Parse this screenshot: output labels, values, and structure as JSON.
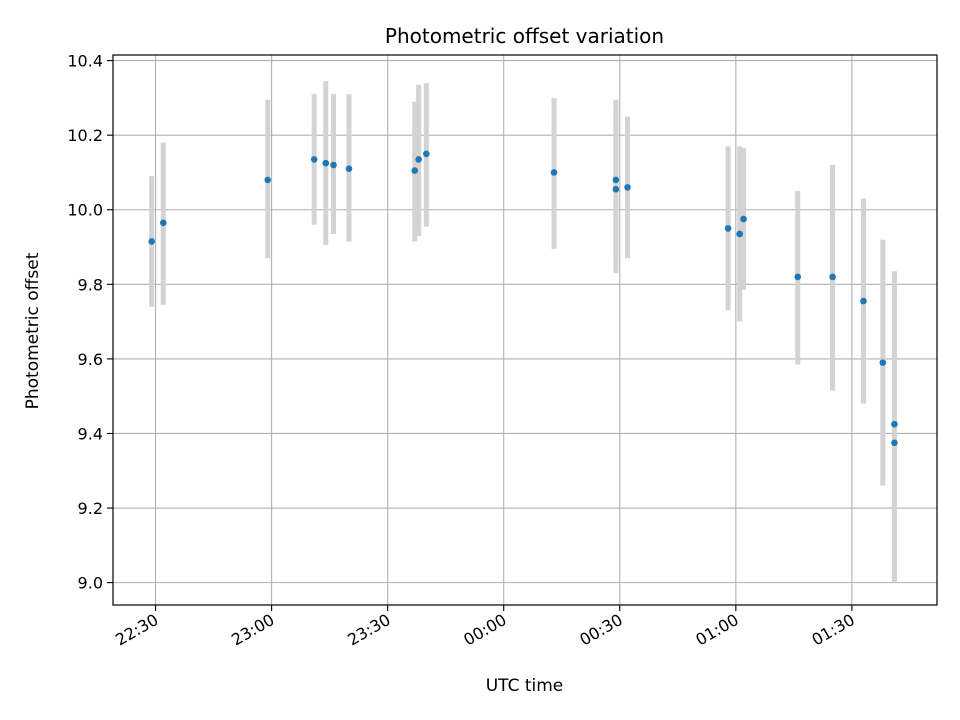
{
  "chart_data": {
    "type": "scatter",
    "title": "Photometric offset variation",
    "xlabel": "UTC time",
    "ylabel": "Photometric offset",
    "x_axis_kind": "time",
    "x_ticks": [
      "22:30",
      "23:00",
      "23:30",
      "00:00",
      "00:30",
      "01:00",
      "01:30"
    ],
    "y_ticks": [
      "9.0",
      "9.2",
      "9.4",
      "9.6",
      "9.8",
      "10.0",
      "10.2",
      "10.4"
    ],
    "xlim": [
      "22:19",
      "01:52"
    ],
    "ylim": [
      8.94,
      10.415
    ],
    "grid": true,
    "point_color": "#1f77b4",
    "errorbar_color": "#d3d3d3",
    "points": [
      {
        "t": "22:29",
        "y": 9.915,
        "ylo": 9.74,
        "yhi": 10.09
      },
      {
        "t": "22:32",
        "y": 9.965,
        "ylo": 9.745,
        "yhi": 10.18
      },
      {
        "t": "22:59",
        "y": 10.08,
        "ylo": 9.87,
        "yhi": 10.295
      },
      {
        "t": "23:11",
        "y": 10.135,
        "ylo": 9.96,
        "yhi": 10.31
      },
      {
        "t": "23:14",
        "y": 10.125,
        "ylo": 9.905,
        "yhi": 10.345
      },
      {
        "t": "23:16",
        "y": 10.12,
        "ylo": 9.935,
        "yhi": 10.31
      },
      {
        "t": "23:20",
        "y": 10.11,
        "ylo": 9.915,
        "yhi": 10.31
      },
      {
        "t": "23:37",
        "y": 10.105,
        "ylo": 9.915,
        "yhi": 10.29
      },
      {
        "t": "23:38",
        "y": 10.135,
        "ylo": 9.93,
        "yhi": 10.335
      },
      {
        "t": "23:40",
        "y": 10.15,
        "ylo": 9.955,
        "yhi": 10.34
      },
      {
        "t": "00:13",
        "y": 10.1,
        "ylo": 9.895,
        "yhi": 10.3
      },
      {
        "t": "00:29",
        "y": 10.08,
        "ylo": 9.86,
        "yhi": 10.295
      },
      {
        "t": "00:29",
        "y": 10.055,
        "ylo": 9.83,
        "yhi": 10.275
      },
      {
        "t": "00:32",
        "y": 10.06,
        "ylo": 9.87,
        "yhi": 10.25
      },
      {
        "t": "00:58",
        "y": 9.95,
        "ylo": 9.73,
        "yhi": 10.17
      },
      {
        "t": "01:01",
        "y": 9.935,
        "ylo": 9.7,
        "yhi": 10.17
      },
      {
        "t": "01:02",
        "y": 9.975,
        "ylo": 9.785,
        "yhi": 10.165
      },
      {
        "t": "01:16",
        "y": 9.82,
        "ylo": 9.585,
        "yhi": 10.05
      },
      {
        "t": "01:25",
        "y": 9.82,
        "ylo": 9.515,
        "yhi": 10.12
      },
      {
        "t": "01:33",
        "y": 9.755,
        "ylo": 9.48,
        "yhi": 10.03
      },
      {
        "t": "01:38",
        "y": 9.59,
        "ylo": 9.26,
        "yhi": 9.92
      },
      {
        "t": "01:41",
        "y": 9.375,
        "ylo": 9.0,
        "yhi": 9.75
      },
      {
        "t": "01:41",
        "y": 9.425,
        "ylo": 9.01,
        "yhi": 9.835
      }
    ]
  }
}
